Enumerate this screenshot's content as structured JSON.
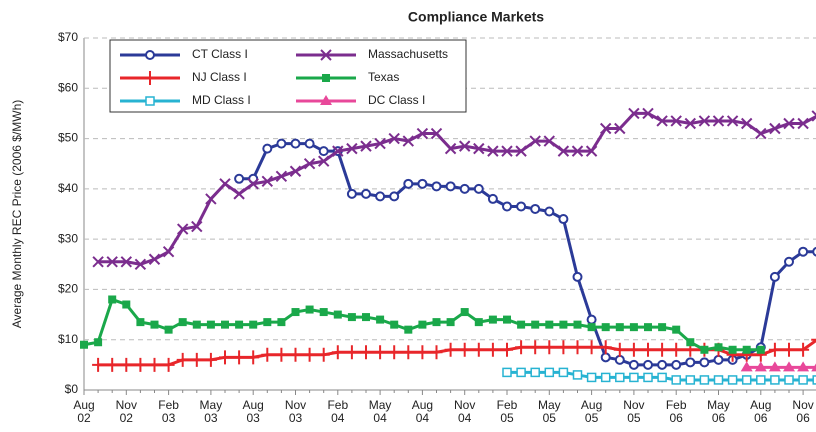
{
  "chart_data": {
    "type": "line",
    "title": "Compliance Markets",
    "y_label": "Average Monthly REC Price (2006 $/MWh)",
    "categories": [
      "Aug 02",
      null,
      null,
      "Nov 02",
      null,
      null,
      "Feb 03",
      null,
      null,
      "May 03",
      null,
      null,
      "Aug 03",
      null,
      null,
      "Nov 03",
      null,
      null,
      "Feb 04",
      null,
      null,
      "May 04",
      null,
      null,
      "Aug 04",
      null,
      null,
      "Nov 04",
      null,
      null,
      "Feb 05",
      null,
      null,
      "May 05",
      null,
      null,
      "Aug 05",
      null,
      null,
      "Nov 05",
      null,
      null,
      "Feb 06",
      null,
      null,
      "May 06",
      null,
      null,
      "Aug 06",
      null,
      null,
      "Nov 06",
      null
    ],
    "ylim": [
      0,
      70
    ],
    "yticks": [
      {
        "value": 0,
        "label": "$0"
      },
      {
        "value": 10,
        "label": "$10"
      },
      {
        "value": 20,
        "label": "$20"
      },
      {
        "value": 30,
        "label": "$30"
      },
      {
        "value": 40,
        "label": "$40"
      },
      {
        "value": 50,
        "label": "$50"
      },
      {
        "value": 60,
        "label": "$60"
      },
      {
        "value": 70,
        "label": "$70"
      }
    ],
    "grid": true,
    "series": [
      {
        "name": "CT Class I",
        "color": "#2b3a98",
        "marker": "circle",
        "values": [
          null,
          null,
          null,
          null,
          null,
          null,
          null,
          null,
          null,
          null,
          null,
          42,
          42,
          48,
          49,
          49,
          49,
          47.5,
          47.5,
          39,
          39,
          38.5,
          38.5,
          41,
          41,
          40.5,
          40.5,
          40,
          40,
          38,
          36.5,
          36.5,
          36,
          35.5,
          34,
          22.5,
          14,
          6.5,
          6,
          5,
          5,
          5,
          5,
          5.5,
          5.5,
          6,
          6,
          7,
          8.5,
          22.5,
          25.5,
          27.5,
          27.5
        ]
      },
      {
        "name": "NJ Class I",
        "color": "#e8262a",
        "marker": "plus",
        "values": [
          null,
          5,
          5,
          5,
          5,
          5,
          5,
          6,
          6,
          6,
          6.5,
          6.5,
          6.5,
          7,
          7,
          7,
          7,
          7,
          7.5,
          7.5,
          7.5,
          7.5,
          7.5,
          7.5,
          7.5,
          7.5,
          8,
          8,
          8,
          8,
          8,
          8.5,
          8.5,
          8.5,
          8.5,
          8.5,
          8.5,
          8.5,
          8,
          8,
          8,
          8,
          8,
          8,
          8,
          8,
          7,
          7,
          7,
          8,
          8,
          8,
          10
        ]
      },
      {
        "name": "MD Class I",
        "color": "#27b3d2",
        "marker": "square-open",
        "values": [
          null,
          null,
          null,
          null,
          null,
          null,
          null,
          null,
          null,
          null,
          null,
          null,
          null,
          null,
          null,
          null,
          null,
          null,
          null,
          null,
          null,
          null,
          null,
          null,
          null,
          null,
          null,
          null,
          null,
          null,
          3.5,
          3.5,
          3.5,
          3.5,
          3.5,
          3,
          2.5,
          2.5,
          2.5,
          2.5,
          2.5,
          2.5,
          2,
          2,
          2,
          2,
          2,
          2,
          2,
          2,
          2,
          2,
          2
        ]
      },
      {
        "name": "Massachusetts",
        "color": "#7b2d8e",
        "marker": "x",
        "values": [
          null,
          25.5,
          25.5,
          25.5,
          25,
          26,
          27.5,
          32,
          32.5,
          38,
          41,
          39,
          41,
          41.5,
          42.5,
          43.5,
          45,
          45.5,
          47.5,
          48,
          48.5,
          49,
          50,
          49.5,
          51,
          51,
          48,
          48.5,
          48,
          47.5,
          47.5,
          47.5,
          49.5,
          49.5,
          47.5,
          47.5,
          47.5,
          52,
          52,
          55,
          55,
          53.5,
          53.5,
          53,
          53.5,
          53.5,
          53.5,
          53,
          51,
          52,
          53,
          53,
          54.5
        ]
      },
      {
        "name": "Texas",
        "color": "#1aa84a",
        "marker": "square",
        "values": [
          9,
          9.5,
          18,
          17,
          13.5,
          13,
          12,
          13.5,
          13,
          13,
          13,
          13,
          13,
          13.5,
          13.5,
          15.5,
          16,
          15.5,
          15,
          14.5,
          14.5,
          14,
          13,
          12,
          13,
          13.5,
          13.5,
          15.5,
          13.5,
          14,
          14,
          13,
          13,
          13,
          13,
          13,
          12.5,
          12.5,
          12.5,
          12.5,
          12.5,
          12.5,
          12,
          9.5,
          8,
          8.5,
          8,
          8,
          8,
          null,
          null,
          null,
          null
        ]
      },
      {
        "name": "DC Class I",
        "color": "#e8489a",
        "marker": "triangle",
        "values": [
          null,
          null,
          null,
          null,
          null,
          null,
          null,
          null,
          null,
          null,
          null,
          null,
          null,
          null,
          null,
          null,
          null,
          null,
          null,
          null,
          null,
          null,
          null,
          null,
          null,
          null,
          null,
          null,
          null,
          null,
          null,
          null,
          null,
          null,
          null,
          null,
          null,
          null,
          null,
          null,
          null,
          null,
          null,
          null,
          null,
          null,
          null,
          4.5,
          4.5,
          4.5,
          4.5,
          4.5,
          4.5
        ]
      }
    ]
  }
}
